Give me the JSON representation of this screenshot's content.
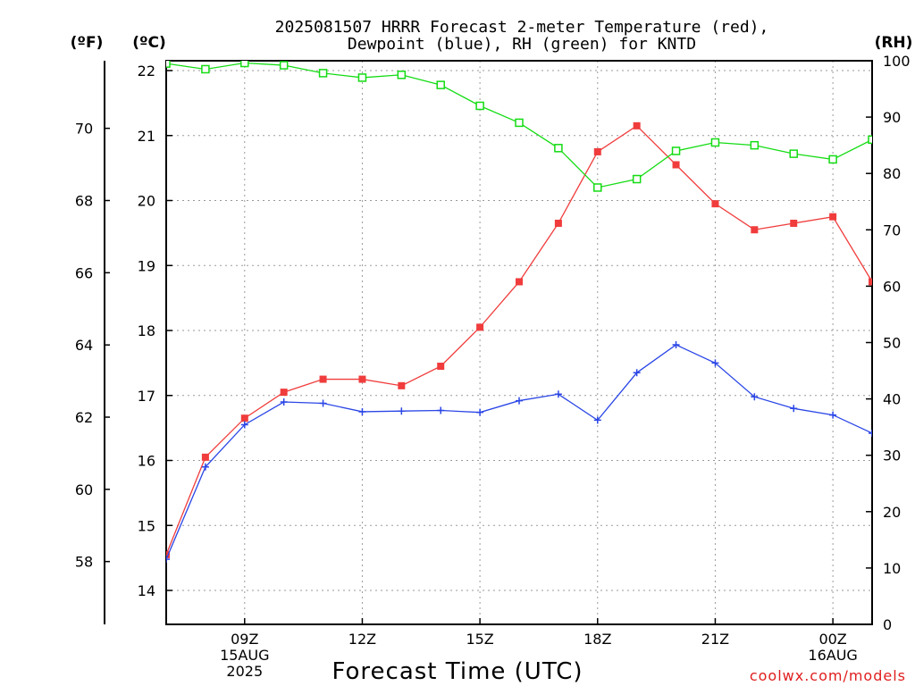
{
  "chart_data": {
    "type": "line",
    "title_line1": "2025081507 HRRR Forecast 2-meter Temperature (red),",
    "title_line2": "Dewpoint (blue), RH (green) for KNTD",
    "xlabel": "Forecast Time (UTC)",
    "unit_f": "(ºF)",
    "unit_c": "(ºC)",
    "unit_rh": "(RH)",
    "credit": "coolwx.com/models",
    "x_ticks": [
      {
        "hour": 9,
        "line1": "09Z",
        "line2": "15AUG",
        "line3": "2025"
      },
      {
        "hour": 12,
        "line1": "12Z",
        "line2": "",
        "line3": ""
      },
      {
        "hour": 15,
        "line1": "15Z",
        "line2": "",
        "line3": ""
      },
      {
        "hour": 18,
        "line1": "18Z",
        "line2": "",
        "line3": ""
      },
      {
        "hour": 21,
        "line1": "21Z",
        "line2": "",
        "line3": ""
      },
      {
        "hour": 24,
        "line1": "00Z",
        "line2": "16AUG",
        "line3": ""
      }
    ],
    "xlim": [
      7,
      25
    ],
    "c_axis": {
      "ylim": [
        13.5,
        22.2
      ],
      "ticks": [
        14,
        15,
        16,
        17,
        18,
        19,
        20,
        21,
        22
      ]
    },
    "f_axis": {
      "ticks": [
        58,
        60,
        62,
        64,
        66,
        68,
        70
      ]
    },
    "rh_axis": {
      "ylim": [
        0,
        100
      ],
      "ticks": [
        0,
        10,
        20,
        30,
        40,
        50,
        60,
        70,
        80,
        90,
        100
      ]
    },
    "grid": true,
    "x": [
      7,
      8,
      9,
      10,
      11,
      12,
      13,
      14,
      15,
      16,
      17,
      18,
      19,
      20,
      21,
      22,
      23,
      24,
      25
    ],
    "series": [
      {
        "name": "Temperature",
        "color": "#f03c3c",
        "axis": "c",
        "marker": "filled-square",
        "values": [
          14.55,
          16.05,
          16.65,
          17.05,
          17.25,
          17.25,
          17.15,
          17.45,
          18.05,
          18.75,
          19.65,
          20.75,
          21.15,
          20.55,
          19.95,
          19.55,
          19.65,
          19.75,
          18.75
        ]
      },
      {
        "name": "Dewpoint",
        "color": "#2a46e6",
        "axis": "c",
        "marker": "plus",
        "values": [
          14.48,
          15.9,
          16.55,
          16.9,
          16.88,
          16.75,
          16.76,
          16.77,
          16.74,
          16.92,
          17.02,
          16.62,
          17.35,
          17.78,
          17.5,
          16.98,
          16.8,
          16.7,
          16.42
        ]
      },
      {
        "name": "RH",
        "color": "#14dc14",
        "axis": "rh",
        "marker": "open-square",
        "values": [
          99.5,
          98.5,
          99.6,
          99.2,
          97.8,
          97.0,
          97.5,
          95.7,
          92.0,
          89.0,
          84.5,
          77.5,
          79.0,
          84.0,
          85.5,
          85.0,
          83.5,
          82.5,
          86.0
        ]
      }
    ]
  }
}
